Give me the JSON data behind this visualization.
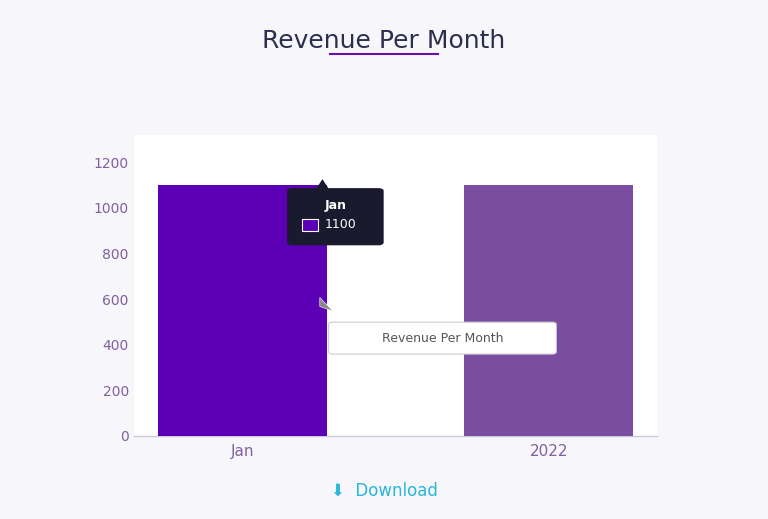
{
  "title": "Revenue Per Month",
  "title_underline_color": "#6a0dad",
  "categories": [
    "Jan",
    "2022"
  ],
  "values": [
    1100,
    1100
  ],
  "bar_colors": [
    "#5B00B5",
    "#7B4DA0"
  ],
  "ylim": [
    0,
    1320
  ],
  "yticks": [
    0,
    200,
    400,
    600,
    800,
    1000,
    1200
  ],
  "ytick_color": "#8060a0",
  "xtick_color": "#8060a0",
  "background_color": "#f7f7fb",
  "plot_bg_color": "#ffffff",
  "title_color": "#2d2d4e",
  "title_fontsize": 18,
  "tooltip_box_color": "#1a1a2e",
  "tooltip_text": "Jan",
  "tooltip_value": "1100",
  "legend_label": "Revenue Per Month",
  "download_text": "  Download",
  "download_color": "#29b6d9",
  "bar_width": 0.55,
  "axis_line_color": "#c8c8d8"
}
